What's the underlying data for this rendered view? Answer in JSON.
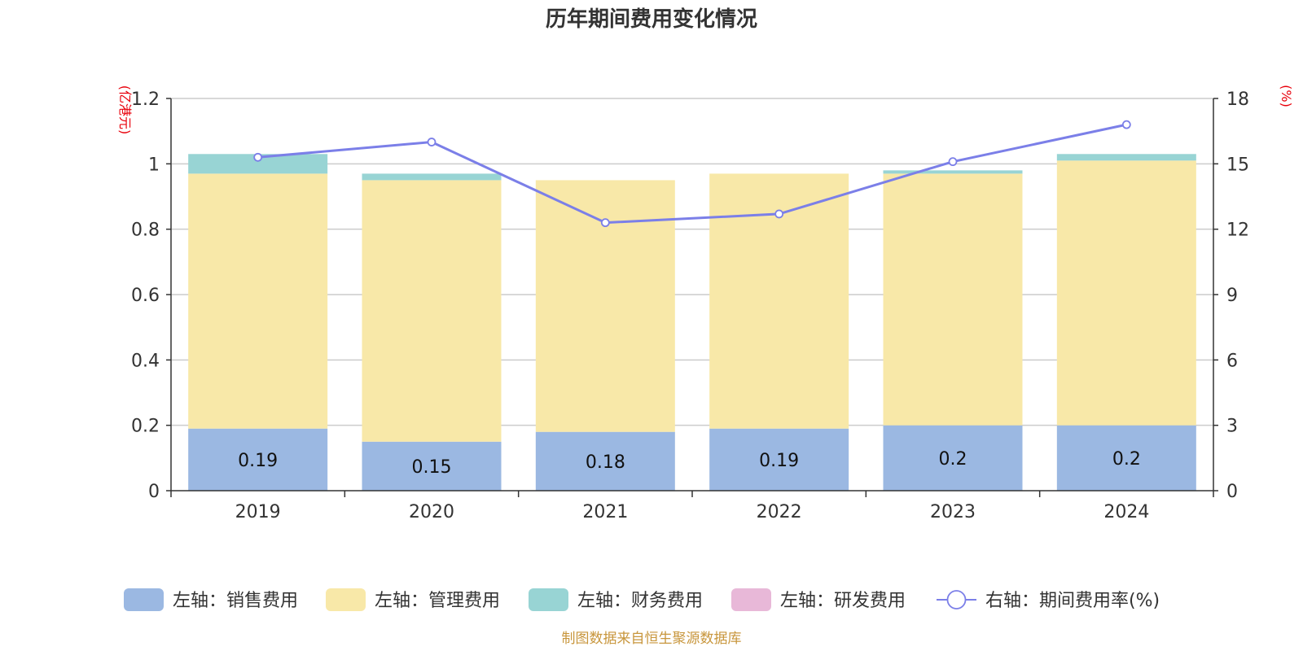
{
  "chart_data": {
    "type": "bar",
    "title": "历年期间费用变化情况",
    "categories": [
      "2019",
      "2020",
      "2021",
      "2022",
      "2023",
      "2024"
    ],
    "left_axis": {
      "unit": "(亿港元)",
      "ylim": [
        0,
        1.2
      ],
      "ticks": [
        "0",
        "0.2",
        "0.4",
        "0.6",
        "0.8",
        "1",
        "1.2"
      ]
    },
    "right_axis": {
      "unit": "(%)",
      "ylim": [
        0,
        18
      ],
      "ticks": [
        "0",
        "3",
        "6",
        "9",
        "12",
        "15",
        "18"
      ]
    },
    "grid": true,
    "legend_position": "bottom",
    "series": [
      {
        "name": "左轴：销售费用",
        "type": "bar",
        "color": "#9bb8e2",
        "values": [
          0.19,
          0.15,
          0.18,
          0.19,
          0.2,
          0.2
        ],
        "data_labels": [
          "0.19",
          "0.15",
          "0.18",
          "0.19",
          "0.2",
          "0.2"
        ]
      },
      {
        "name": "左轴：管理费用",
        "type": "bar",
        "color": "#f8e8a8",
        "values": [
          0.78,
          0.8,
          0.77,
          0.78,
          0.77,
          0.81
        ]
      },
      {
        "name": "左轴：财务费用",
        "type": "bar",
        "color": "#98d4d4",
        "values": [
          0.06,
          0.02,
          0.0,
          0.0,
          0.01,
          0.02
        ]
      },
      {
        "name": "左轴：研发费用",
        "type": "bar",
        "color": "#e8b8d8",
        "values": [
          0,
          0,
          0,
          0,
          0,
          0
        ]
      },
      {
        "name": "右轴：期间费用率(%)",
        "type": "line",
        "color": "#7b7fe8",
        "values": [
          15.3,
          16.0,
          12.3,
          12.7,
          15.1,
          16.8
        ]
      }
    ],
    "source": "制图数据来自恒生聚源数据库"
  }
}
